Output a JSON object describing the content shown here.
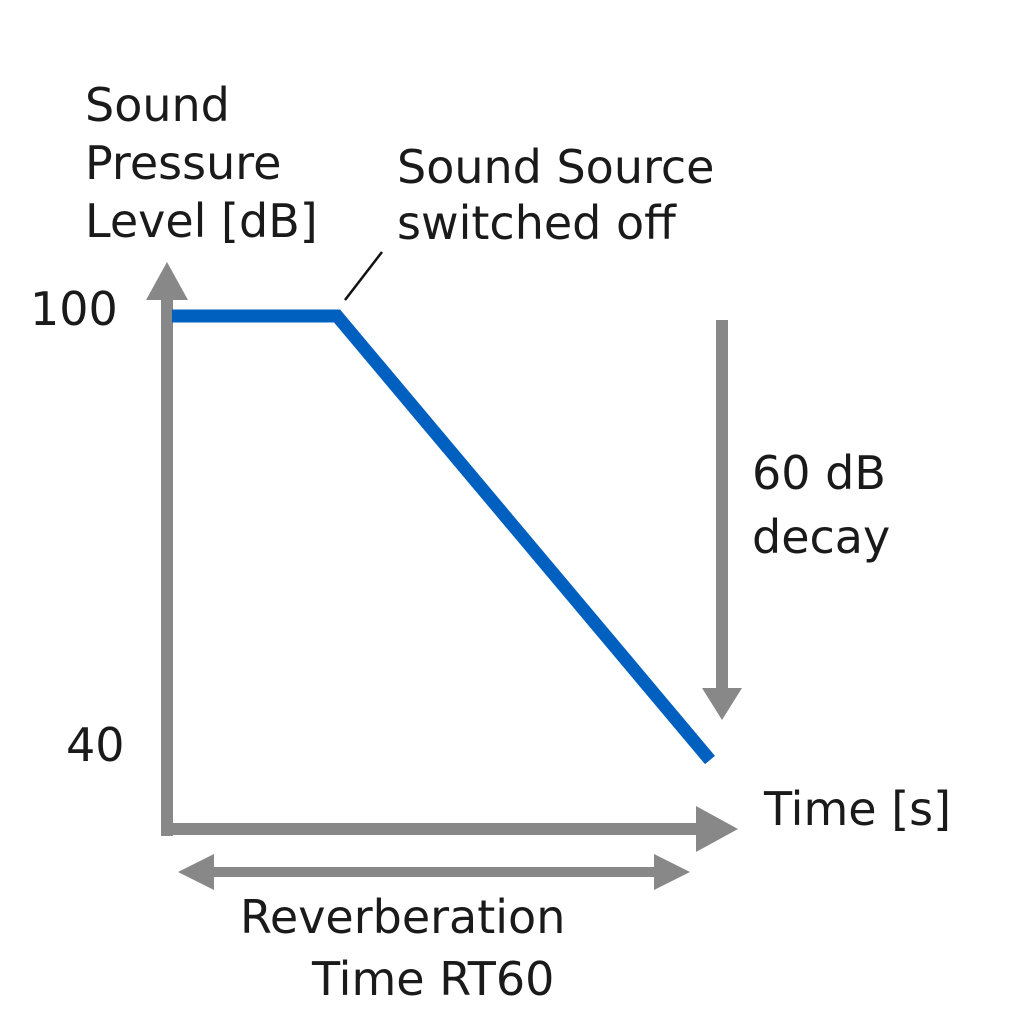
{
  "chart_data": {
    "type": "line",
    "ylabel_lines": [
      "Sound",
      "Pressure",
      "Level [dB]"
    ],
    "xlabel": "Time [s]",
    "yticks": [
      100,
      40
    ],
    "series": [
      {
        "y": [
          100,
          100,
          40
        ]
      }
    ],
    "annotations": {
      "switch_off": [
        "Sound Source",
        "switched off"
      ],
      "decay": [
        "60 dB",
        "decay"
      ],
      "rt60": [
        "Reverberation",
        "Time RT60"
      ]
    },
    "grid": false
  },
  "colors": {
    "line": "#0060C0",
    "axis": "#888888",
    "text": "#1a1a1a"
  }
}
